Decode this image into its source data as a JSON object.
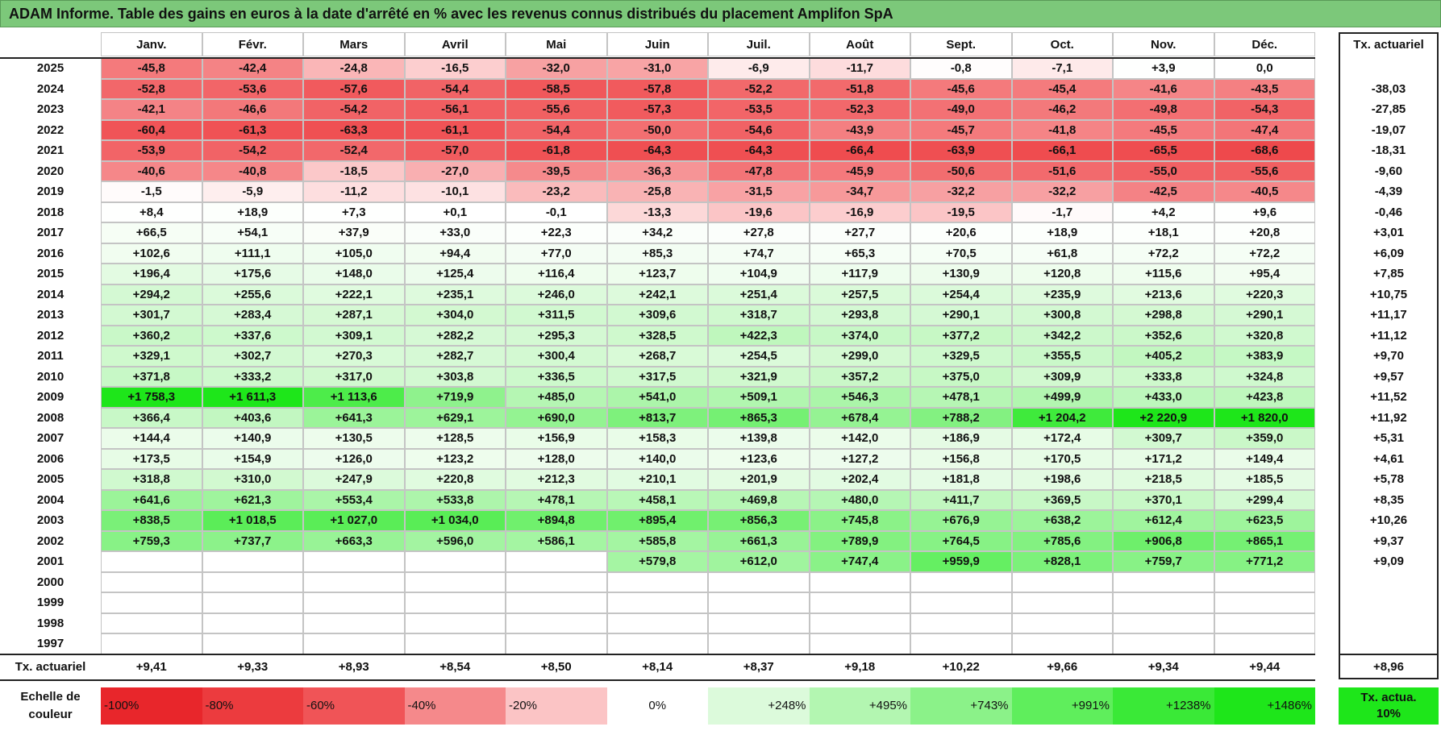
{
  "title": "ADAM Informe. Table des gains en euros à la date d'arrêté en % avec les revenus connus distribués du placement Amplifon SpA",
  "columns": [
    "Janv.",
    "Févr.",
    "Mars",
    "Avril",
    "Mai",
    "Juin",
    "Juil.",
    "Août",
    "Sept.",
    "Oct.",
    "Nov.",
    "Déc."
  ],
  "rate_header": "Tx. actuariel",
  "rows": [
    {
      "year": "2025",
      "values": [
        "-45,8",
        "-42,4",
        "-24,8",
        "-16,5",
        "-32,0",
        "-31,0",
        "-6,9",
        "-11,7",
        "-0,8",
        "-7,1",
        "+3,9",
        "0,0"
      ],
      "rate": null
    },
    {
      "year": "2024",
      "values": [
        "-52,8",
        "-53,6",
        "-57,6",
        "-54,4",
        "-58,5",
        "-57,8",
        "-52,2",
        "-51,8",
        "-45,6",
        "-45,4",
        "-41,6",
        "-43,5"
      ],
      "rate": "-38,03"
    },
    {
      "year": "2023",
      "values": [
        "-42,1",
        "-46,6",
        "-54,2",
        "-56,1",
        "-55,6",
        "-57,3",
        "-53,5",
        "-52,3",
        "-49,0",
        "-46,2",
        "-49,8",
        "-54,3"
      ],
      "rate": "-27,85"
    },
    {
      "year": "2022",
      "values": [
        "-60,4",
        "-61,3",
        "-63,3",
        "-61,1",
        "-54,4",
        "-50,0",
        "-54,6",
        "-43,9",
        "-45,7",
        "-41,8",
        "-45,5",
        "-47,4"
      ],
      "rate": "-19,07"
    },
    {
      "year": "2021",
      "values": [
        "-53,9",
        "-54,2",
        "-52,4",
        "-57,0",
        "-61,8",
        "-64,3",
        "-64,3",
        "-66,4",
        "-63,9",
        "-66,1",
        "-65,5",
        "-68,6"
      ],
      "rate": "-18,31"
    },
    {
      "year": "2020",
      "values": [
        "-40,6",
        "-40,8",
        "-18,5",
        "-27,0",
        "-39,5",
        "-36,3",
        "-47,8",
        "-45,9",
        "-50,6",
        "-51,6",
        "-55,0",
        "-55,6"
      ],
      "rate": "-9,60"
    },
    {
      "year": "2019",
      "values": [
        "-1,5",
        "-5,9",
        "-11,2",
        "-10,1",
        "-23,2",
        "-25,8",
        "-31,5",
        "-34,7",
        "-32,2",
        "-32,2",
        "-42,5",
        "-40,5"
      ],
      "rate": "-4,39"
    },
    {
      "year": "2018",
      "values": [
        "+8,4",
        "+18,9",
        "+7,3",
        "+0,1",
        "-0,1",
        "-13,3",
        "-19,6",
        "-16,9",
        "-19,5",
        "-1,7",
        "+4,2",
        "+9,6"
      ],
      "rate": "-0,46"
    },
    {
      "year": "2017",
      "values": [
        "+66,5",
        "+54,1",
        "+37,9",
        "+33,0",
        "+22,3",
        "+34,2",
        "+27,8",
        "+27,7",
        "+20,6",
        "+18,9",
        "+18,1",
        "+20,8"
      ],
      "rate": "+3,01"
    },
    {
      "year": "2016",
      "values": [
        "+102,6",
        "+111,1",
        "+105,0",
        "+94,4",
        "+77,0",
        "+85,3",
        "+74,7",
        "+65,3",
        "+70,5",
        "+61,8",
        "+72,2",
        "+72,2"
      ],
      "rate": "+6,09"
    },
    {
      "year": "2015",
      "values": [
        "+196,4",
        "+175,6",
        "+148,0",
        "+125,4",
        "+116,4",
        "+123,7",
        "+104,9",
        "+117,9",
        "+130,9",
        "+120,8",
        "+115,6",
        "+95,4"
      ],
      "rate": "+7,85"
    },
    {
      "year": "2014",
      "values": [
        "+294,2",
        "+255,6",
        "+222,1",
        "+235,1",
        "+246,0",
        "+242,1",
        "+251,4",
        "+257,5",
        "+254,4",
        "+235,9",
        "+213,6",
        "+220,3"
      ],
      "rate": "+10,75"
    },
    {
      "year": "2013",
      "values": [
        "+301,7",
        "+283,4",
        "+287,1",
        "+304,0",
        "+311,5",
        "+309,6",
        "+318,7",
        "+293,8",
        "+290,1",
        "+300,8",
        "+298,8",
        "+290,1"
      ],
      "rate": "+11,17"
    },
    {
      "year": "2012",
      "values": [
        "+360,2",
        "+337,6",
        "+309,1",
        "+282,2",
        "+295,3",
        "+328,5",
        "+422,3",
        "+374,0",
        "+377,2",
        "+342,2",
        "+352,6",
        "+320,8"
      ],
      "rate": "+11,12"
    },
    {
      "year": "2011",
      "values": [
        "+329,1",
        "+302,7",
        "+270,3",
        "+282,7",
        "+300,4",
        "+268,7",
        "+254,5",
        "+299,0",
        "+329,5",
        "+355,5",
        "+405,2",
        "+383,9"
      ],
      "rate": "+9,70"
    },
    {
      "year": "2010",
      "values": [
        "+371,8",
        "+333,2",
        "+317,0",
        "+303,8",
        "+336,5",
        "+317,5",
        "+321,9",
        "+357,2",
        "+375,0",
        "+309,9",
        "+333,8",
        "+324,8"
      ],
      "rate": "+9,57"
    },
    {
      "year": "2009",
      "values": [
        "+1 758,3",
        "+1 611,3",
        "+1 113,6",
        "+719,9",
        "+485,0",
        "+541,0",
        "+509,1",
        "+546,3",
        "+478,1",
        "+499,9",
        "+433,0",
        "+423,8"
      ],
      "rate": "+11,52"
    },
    {
      "year": "2008",
      "values": [
        "+366,4",
        "+403,6",
        "+641,3",
        "+629,1",
        "+690,0",
        "+813,7",
        "+865,3",
        "+678,4",
        "+788,2",
        "+1 204,2",
        "+2 220,9",
        "+1 820,0"
      ],
      "rate": "+11,92"
    },
    {
      "year": "2007",
      "values": [
        "+144,4",
        "+140,9",
        "+130,5",
        "+128,5",
        "+156,9",
        "+158,3",
        "+139,8",
        "+142,0",
        "+186,9",
        "+172,4",
        "+309,7",
        "+359,0"
      ],
      "rate": "+5,31"
    },
    {
      "year": "2006",
      "values": [
        "+173,5",
        "+154,9",
        "+126,0",
        "+123,2",
        "+128,0",
        "+140,0",
        "+123,6",
        "+127,2",
        "+156,8",
        "+170,5",
        "+171,2",
        "+149,4"
      ],
      "rate": "+4,61"
    },
    {
      "year": "2005",
      "values": [
        "+318,8",
        "+310,0",
        "+247,9",
        "+220,8",
        "+212,3",
        "+210,1",
        "+201,9",
        "+202,4",
        "+181,8",
        "+198,6",
        "+218,5",
        "+185,5"
      ],
      "rate": "+5,78"
    },
    {
      "year": "2004",
      "values": [
        "+641,6",
        "+621,3",
        "+553,4",
        "+533,8",
        "+478,1",
        "+458,1",
        "+469,8",
        "+480,0",
        "+411,7",
        "+369,5",
        "+370,1",
        "+299,4"
      ],
      "rate": "+8,35"
    },
    {
      "year": "2003",
      "values": [
        "+838,5",
        "+1 018,5",
        "+1 027,0",
        "+1 034,0",
        "+894,8",
        "+895,4",
        "+856,3",
        "+745,8",
        "+676,9",
        "+638,2",
        "+612,4",
        "+623,5"
      ],
      "rate": "+10,26"
    },
    {
      "year": "2002",
      "values": [
        "+759,3",
        "+737,7",
        "+663,3",
        "+596,0",
        "+586,1",
        "+585,8",
        "+661,3",
        "+789,9",
        "+764,5",
        "+785,6",
        "+906,8",
        "+865,1"
      ],
      "rate": "+9,37"
    },
    {
      "year": "2001",
      "values": [
        null,
        null,
        null,
        null,
        null,
        "+579,8",
        "+612,0",
        "+747,4",
        "+959,9",
        "+828,1",
        "+759,7",
        "+771,2"
      ],
      "rate": "+9,09"
    },
    {
      "year": "2000",
      "values": [
        null,
        null,
        null,
        null,
        null,
        null,
        null,
        null,
        null,
        null,
        null,
        null
      ],
      "rate": null
    },
    {
      "year": "1999",
      "values": [
        null,
        null,
        null,
        null,
        null,
        null,
        null,
        null,
        null,
        null,
        null,
        null
      ],
      "rate": null
    },
    {
      "year": "1998",
      "values": [
        null,
        null,
        null,
        null,
        null,
        null,
        null,
        null,
        null,
        null,
        null,
        null
      ],
      "rate": null
    },
    {
      "year": "1997",
      "values": [
        null,
        null,
        null,
        null,
        null,
        null,
        null,
        null,
        null,
        null,
        null,
        null
      ],
      "rate": null
    }
  ],
  "summary": {
    "label": "Tx. actuariel",
    "values": [
      "+9,41",
      "+9,33",
      "+8,93",
      "+8,54",
      "+8,50",
      "+8,14",
      "+8,37",
      "+9,18",
      "+10,22",
      "+9,66",
      "+9,34",
      "+9,44"
    ],
    "rate": "+8,96"
  },
  "scale": {
    "label": "Echelle de couleur",
    "stops": [
      {
        "label": "-100%",
        "color": "#e8262b"
      },
      {
        "label": "-80%",
        "color": "#ec3b3e"
      },
      {
        "label": "-60%",
        "color": "#f05457"
      },
      {
        "label": "-40%",
        "color": "#f5898b"
      },
      {
        "label": "-20%",
        "color": "#fbc4c5"
      },
      {
        "label": "0%",
        "color": "#ffffff"
      },
      {
        "label": "+248%",
        "color": "#dcfadb"
      },
      {
        "label": "+495%",
        "color": "#b3f6b1"
      },
      {
        "label": "+743%",
        "color": "#8bf289"
      },
      {
        "label": "+991%",
        "color": "#5fee5c"
      },
      {
        "label": "+1238%",
        "color": "#3ae937"
      },
      {
        "label": "+1486%",
        "color": "#1ee61a"
      }
    ],
    "rate_label": "Tx. actua. 10%",
    "rate_color": "#1ee61a"
  }
}
